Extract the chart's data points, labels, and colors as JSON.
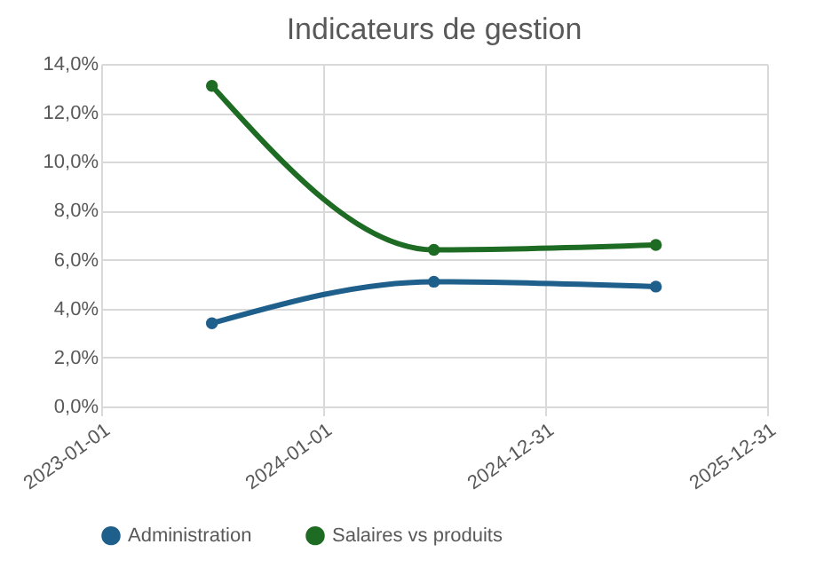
{
  "chart_data": {
    "type": "line",
    "title": "Indicateurs de gestion",
    "x": [
      "2023-07-02",
      "2024-07-01",
      "2025-07-01"
    ],
    "series": [
      {
        "name": "Administration",
        "color": "#1f5f8b",
        "values": [
          3.4,
          5.1,
          4.9
        ]
      },
      {
        "name": "Salaires vs produits",
        "color": "#1e6b24",
        "values": [
          13.1,
          6.4,
          6.6
        ]
      }
    ],
    "xlim": [
      "2023-01-01",
      "2025-12-31"
    ],
    "xticks": [
      "2023-01-01",
      "2024-01-01",
      "2024-12-31",
      "2025-12-31"
    ],
    "ylim": [
      0,
      14
    ],
    "yticks": [
      {
        "value": 0,
        "label": "0,0%"
      },
      {
        "value": 2,
        "label": "2,0%"
      },
      {
        "value": 4,
        "label": "4,0%"
      },
      {
        "value": 6,
        "label": "6,0%"
      },
      {
        "value": 8,
        "label": "8,0%"
      },
      {
        "value": 10,
        "label": "10,0%"
      },
      {
        "value": 12,
        "label": "12,0%"
      },
      {
        "value": 14,
        "label": "14,0%"
      }
    ],
    "grid": true,
    "legend": "bottom",
    "marker": "circle",
    "line_style": "solid"
  }
}
